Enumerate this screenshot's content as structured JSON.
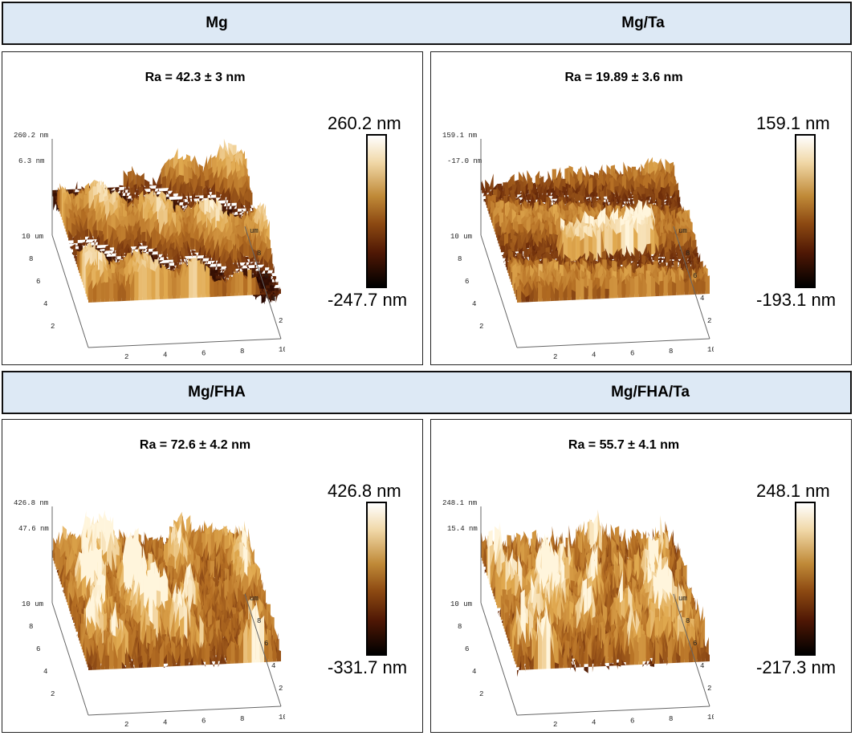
{
  "panels": [
    {
      "group": "Mg",
      "ra": "Ra = 42.3 ± 3 nm",
      "scale_max": "260.2 nm",
      "scale_min": "-247.7 nm",
      "z_top": "260.2 nm",
      "z_mid": "6.3 nm",
      "morphology": "elongated ridges"
    },
    {
      "group": "Mg/Ta",
      "ra": "Ra = 19.89 ± 3.6 nm",
      "scale_max": "159.1 nm",
      "scale_min": "-193.1 nm",
      "z_top": "159.1 nm",
      "z_mid": "-17.0 nm",
      "morphology": "fine granular ridges"
    },
    {
      "group": "Mg/FHA",
      "ra": "Ra = 72.6 ± 4.2 nm",
      "scale_max": "426.8 nm",
      "scale_min": "-331.7 nm",
      "z_top": "426.8 nm",
      "z_mid": "47.6 nm",
      "morphology": "rough peaks"
    },
    {
      "group": "Mg/FHA/Ta",
      "ra": "Ra = 55.7 ± 4.1 nm",
      "scale_max": "248.1 nm",
      "scale_min": "-217.3 nm",
      "z_top": "248.1 nm",
      "z_mid": "15.4 nm",
      "morphology": "dense peaks"
    }
  ],
  "axis": {
    "x_ticks": [
      "2",
      "4",
      "6",
      "8",
      "10 um"
    ],
    "y_ticks": [
      "2",
      "4",
      "6",
      "8",
      "10 um"
    ],
    "z_ticks_right": [
      "2",
      "4",
      "6",
      "8",
      "um"
    ]
  },
  "colors": {
    "header_bg": "#dde9f5",
    "surface_light": "#f3dfae",
    "surface_mid": "#b8741f",
    "surface_dark": "#4a1705"
  }
}
